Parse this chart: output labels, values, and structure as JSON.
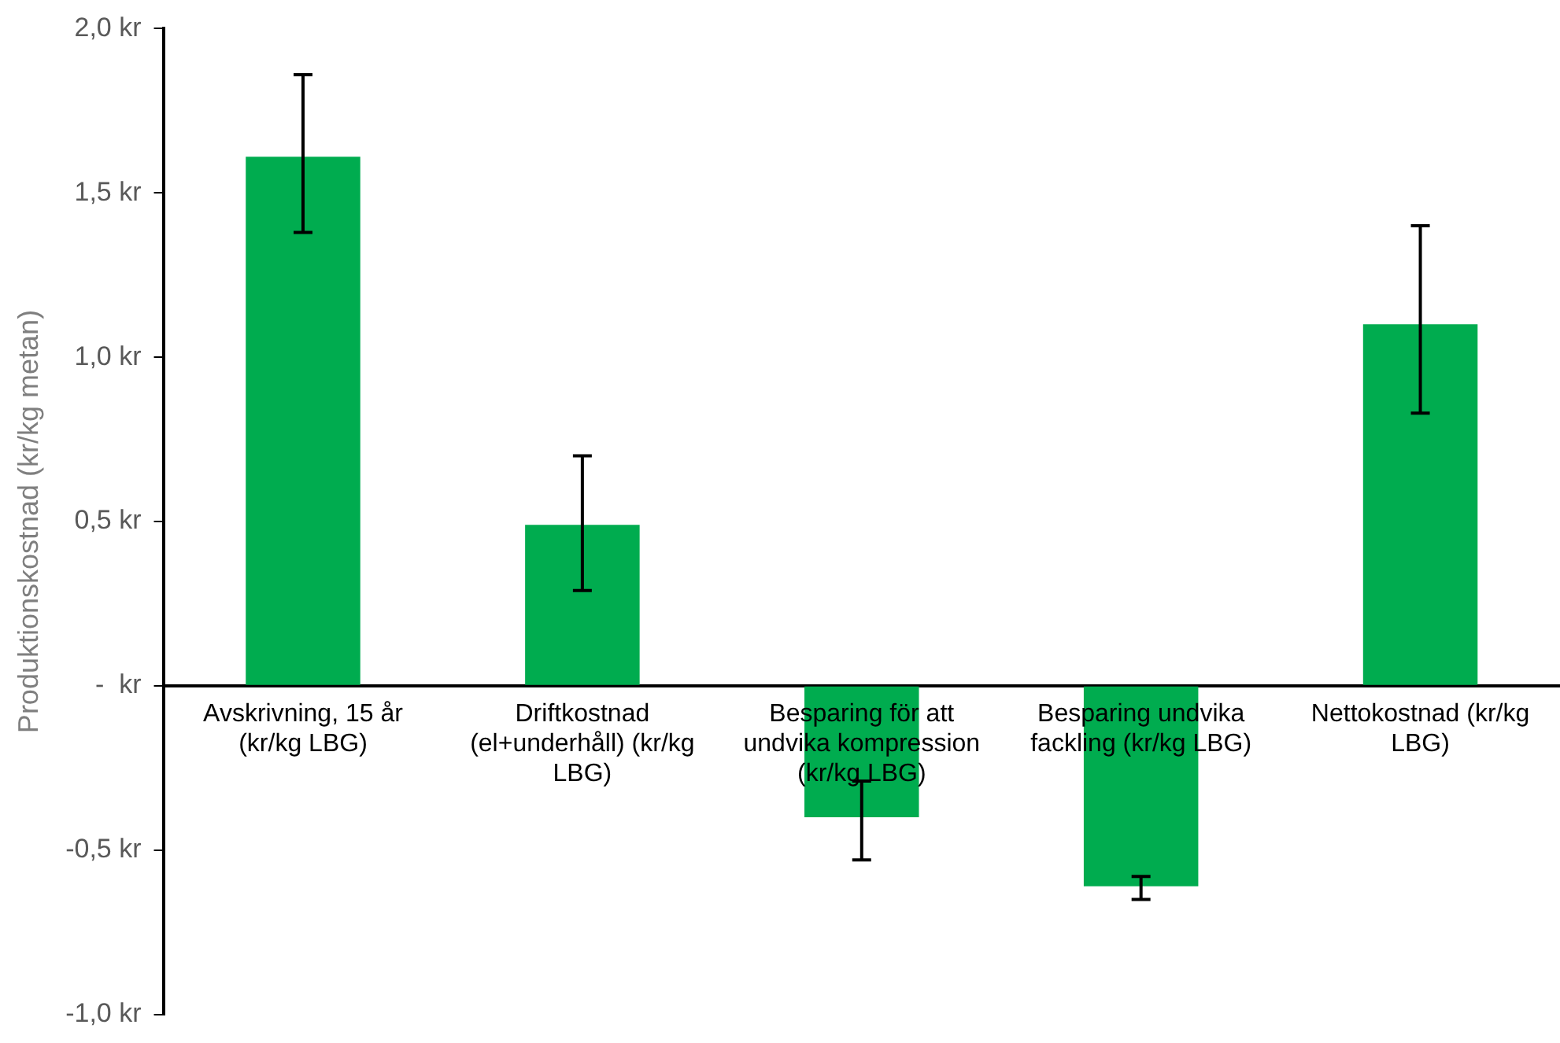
{
  "chart_data": {
    "type": "bar",
    "ylabel": "Produktionskostnad (kr/kg metan)",
    "categories": [
      "Avskrivning, 15 år (kr/kg LBG)",
      "Driftkostnad (el+underhåll) (kr/kg LBG)",
      "Besparing för att undvika kompression (kr/kg LBG)",
      "Besparing undvika fackling (kr/kg LBG)",
      "Nettokostnad (kr/kg LBG)"
    ],
    "values": [
      1.61,
      0.49,
      -0.4,
      -0.61,
      1.1
    ],
    "errors": [
      [
        1.38,
        1.86
      ],
      [
        0.29,
        0.7
      ],
      [
        -0.53,
        -0.29
      ],
      [
        -0.65,
        -0.58
      ],
      [
        0.83,
        1.4
      ]
    ],
    "color": "#00ac4f",
    "ylim": [
      -1.0,
      2.0
    ],
    "yticks": [
      {
        "value": -1.0,
        "label": "-1,0 kr"
      },
      {
        "value": -0.5,
        "label": "-0,5 kr"
      },
      {
        "value": 0,
        "label": "-  kr"
      },
      {
        "value": 0.5,
        "label": "0,5 kr"
      },
      {
        "value": 1.0,
        "label": "1,0 kr"
      },
      {
        "value": 1.5,
        "label": "1,5 kr"
      },
      {
        "value": 2.0,
        "label": "2,0 kr"
      }
    ],
    "grid": false,
    "legend": false
  }
}
